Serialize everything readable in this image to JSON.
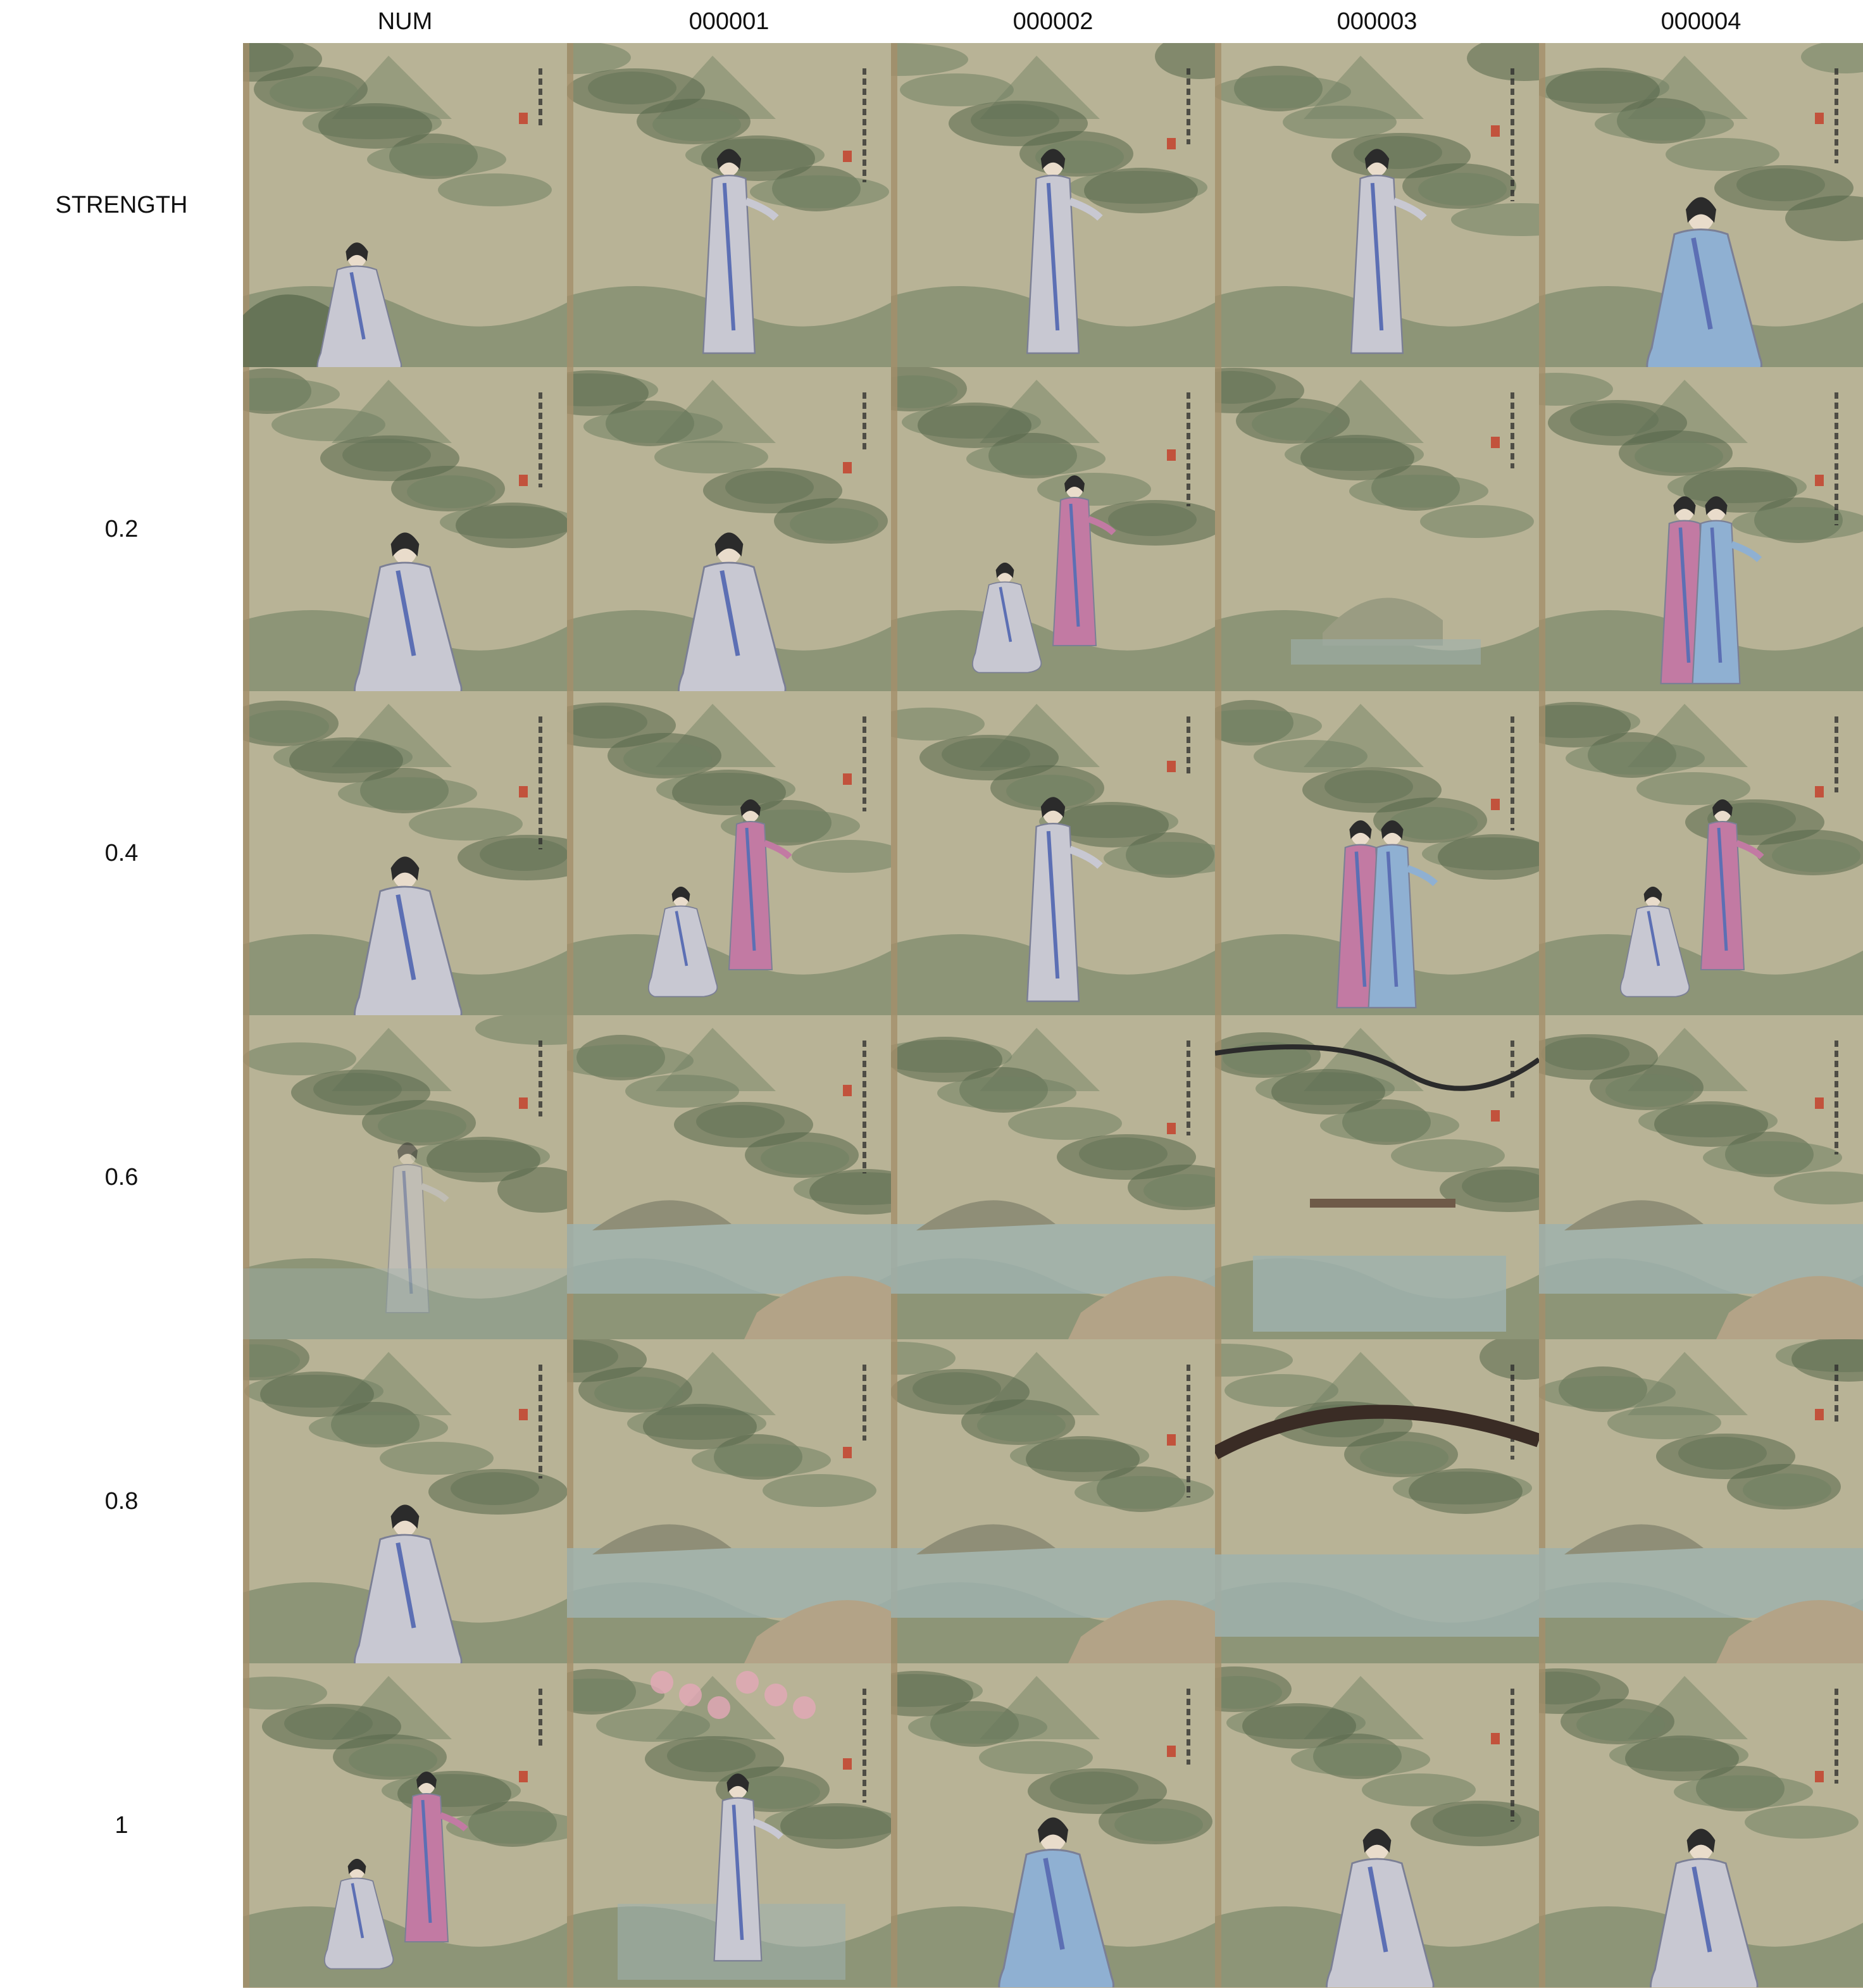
{
  "header": {
    "corner_label": "",
    "columns": [
      "NUM",
      "000001",
      "000002",
      "000003",
      "000004"
    ]
  },
  "rows": [
    {
      "label": "STRENGTH",
      "cells": [
        "woman-reclining",
        "woman-standing",
        "woman-standing",
        "woman-standing",
        "woman-seated-blue"
      ]
    },
    {
      "label": "0.2",
      "cells": [
        "woman-seated",
        "woman-seated",
        "two-women",
        "landscape",
        "couple"
      ]
    },
    {
      "label": "0.4",
      "cells": [
        "woman-seated",
        "two-women",
        "woman-standing",
        "couple",
        "two-women"
      ]
    },
    {
      "label": "0.6",
      "cells": [
        "woman-faint",
        "river-landscape",
        "river-landscape",
        "bridge-landscape",
        "river-landscape"
      ]
    },
    {
      "label": "0.8",
      "cells": [
        "woman-seated",
        "river-landscape",
        "mountain-landscape",
        "tree-river",
        "river-landscape"
      ]
    },
    {
      "label": "1",
      "cells": [
        "two-women",
        "blossom-woman",
        "woman-seated-blue",
        "woman-seated",
        "woman-seated"
      ]
    }
  ],
  "palette": {
    "paper": "#c9bb98",
    "pine_dark": "#55664a",
    "pine_mid": "#6f8062",
    "mist": "#a9ad95",
    "water": "#9fb1ad",
    "robe_white": "#c8c8d2",
    "robe_blue": "#8fb0d2",
    "robe_pink": "#c27aa3",
    "seal_red": "#c2523c",
    "ink": "#2b2b2b"
  }
}
